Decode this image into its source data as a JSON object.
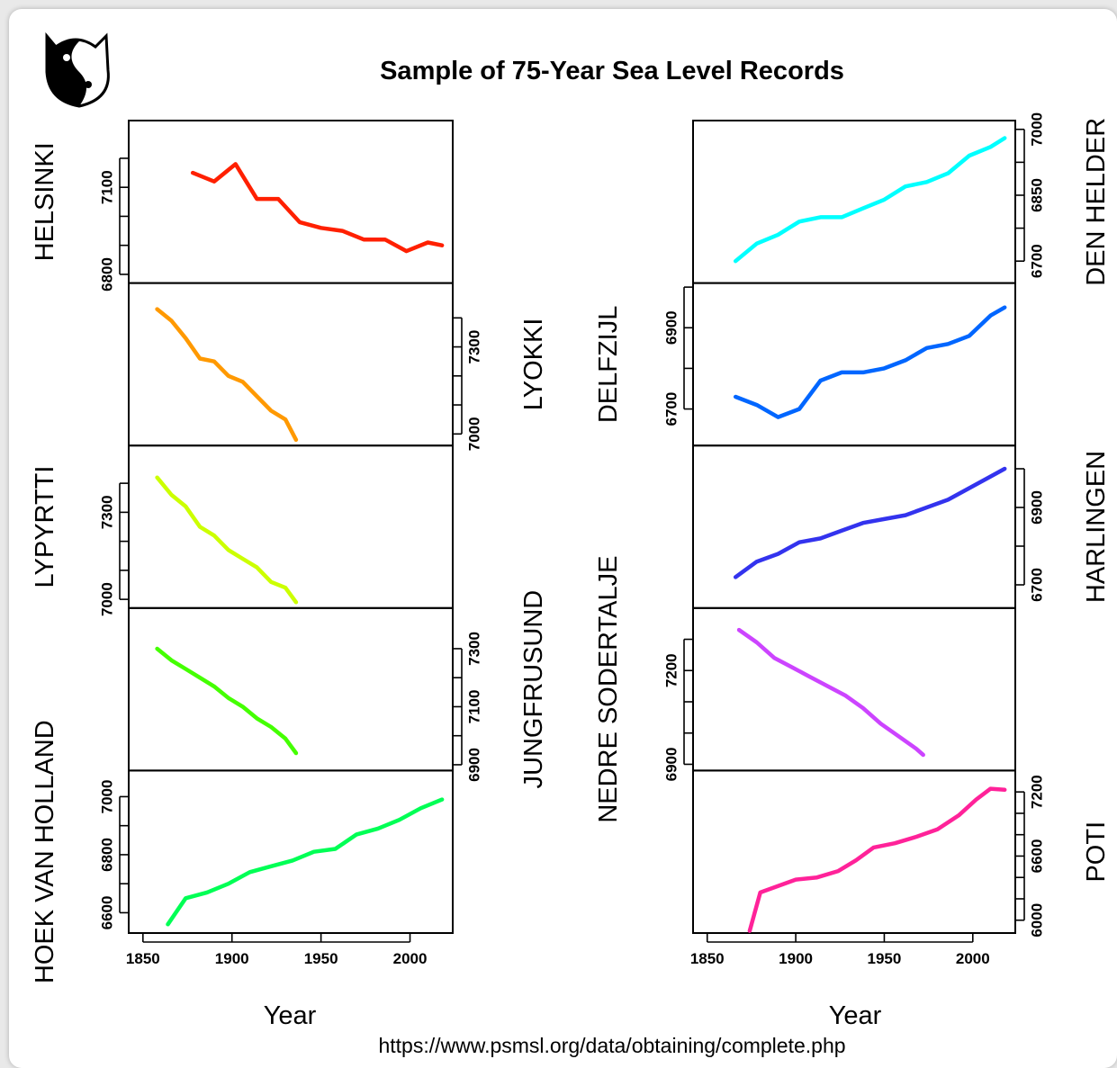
{
  "title": "Sample of 75-Year Sea Level Records",
  "source": "https://www.psmsl.org/data/obtaining/complete.php",
  "logo": {
    "icon": "yin-yang-cat-icon"
  },
  "chart_data": {
    "type": "line",
    "title": "Sample of 75-Year Sea Level Records",
    "xlabel": "Year",
    "xlim": [
      1842,
      2024
    ],
    "x_ticks": [
      1850,
      1900,
      1950,
      2000
    ],
    "x_tick_labels": [
      "1850",
      "1900",
      "1950",
      "2000"
    ],
    "panels_left": [
      {
        "name": "HELSINKI",
        "color": "#ff2000",
        "axis_side": "left",
        "ylim": [
          6770,
          7330
        ],
        "ticks": [
          6800,
          7100
        ],
        "tick_labels": [
          "6800",
          "7100"
        ],
        "minor_ticks": [
          6800,
          6900,
          7000,
          7100,
          7200
        ],
        "x": [
          1878,
          1890,
          1902,
          1914,
          1926,
          1938,
          1950,
          1962,
          1974,
          1986,
          1998,
          2010,
          2018
        ],
        "values": [
          7150,
          7120,
          7180,
          7060,
          7060,
          6980,
          6960,
          6950,
          6920,
          6920,
          6880,
          6910,
          6900
        ]
      },
      {
        "name": "LYOKKI",
        "color": "#ff9900",
        "axis_side": "right",
        "ylim": [
          6960,
          7520
        ],
        "ticks": [
          7000,
          7300
        ],
        "tick_labels": [
          "7000",
          "7300"
        ],
        "minor_ticks": [
          7000,
          7100,
          7200,
          7300,
          7400
        ],
        "x": [
          1858,
          1866,
          1874,
          1882,
          1890,
          1898,
          1906,
          1914,
          1922,
          1930,
          1936
        ],
        "values": [
          7430,
          7390,
          7330,
          7260,
          7250,
          7200,
          7180,
          7130,
          7080,
          7050,
          6980
        ]
      },
      {
        "name": "LYPYRTTI",
        "color": "#ccff00",
        "axis_side": "left",
        "ylim": [
          6970,
          7530
        ],
        "ticks": [
          7000,
          7300
        ],
        "tick_labels": [
          "7000",
          "7300"
        ],
        "minor_ticks": [
          7000,
          7100,
          7200,
          7300,
          7400
        ],
        "x": [
          1858,
          1866,
          1874,
          1882,
          1890,
          1898,
          1906,
          1914,
          1922,
          1930,
          1936
        ],
        "values": [
          7420,
          7360,
          7320,
          7250,
          7220,
          7170,
          7140,
          7110,
          7060,
          7040,
          6990
        ]
      },
      {
        "name": "JUNGFRUSUND",
        "color": "#44ff00",
        "axis_side": "right",
        "ylim": [
          6880,
          7440
        ],
        "ticks": [
          6900,
          7100,
          7300
        ],
        "tick_labels": [
          "6900",
          "7100",
          "7300"
        ],
        "minor_ticks": [
          6900,
          7000,
          7100,
          7200,
          7300
        ],
        "x": [
          1858,
          1866,
          1874,
          1882,
          1890,
          1898,
          1906,
          1914,
          1922,
          1930,
          1936
        ],
        "values": [
          7300,
          7260,
          7230,
          7200,
          7170,
          7130,
          7100,
          7060,
          7030,
          6990,
          6940
        ]
      },
      {
        "name": "HOEK VAN HOLLAND",
        "color": "#00ff55",
        "axis_side": "left",
        "ylim": [
          6530,
          7090
        ],
        "ticks": [
          6600,
          6800,
          7000
        ],
        "tick_labels": [
          "6600",
          "6800",
          "7000"
        ],
        "minor_ticks": [
          6600,
          6700,
          6800,
          6900,
          7000
        ],
        "x": [
          1864,
          1874,
          1886,
          1898,
          1910,
          1922,
          1934,
          1946,
          1958,
          1970,
          1982,
          1994,
          2006,
          2018
        ],
        "values": [
          6560,
          6650,
          6670,
          6700,
          6740,
          6760,
          6780,
          6810,
          6820,
          6870,
          6890,
          6920,
          6960,
          6990
        ]
      }
    ],
    "panels_right": [
      {
        "name": "DEN HELDER",
        "color": "#00ffff",
        "axis_side": "right",
        "ylim": [
          6650,
          7020
        ],
        "ticks": [
          6700,
          6850,
          7000
        ],
        "tick_labels": [
          "6700",
          "6850",
          "7000"
        ],
        "minor_ticks": [
          6700,
          6775,
          6850,
          6925,
          7000
        ],
        "x": [
          1866,
          1878,
          1890,
          1902,
          1914,
          1926,
          1938,
          1950,
          1962,
          1974,
          1986,
          1998,
          2010,
          2018
        ],
        "values": [
          6700,
          6740,
          6760,
          6790,
          6800,
          6800,
          6820,
          6840,
          6870,
          6880,
          6900,
          6940,
          6960,
          6980
        ]
      },
      {
        "name": "DELFZIJL",
        "color": "#0066ff",
        "axis_side": "left",
        "ylim": [
          6610,
          7010
        ],
        "ticks": [
          6700,
          6900
        ],
        "tick_labels": [
          "6700",
          "6900"
        ],
        "minor_ticks": [
          6700,
          6800,
          6900,
          7000
        ],
        "x": [
          1866,
          1878,
          1890,
          1902,
          1914,
          1926,
          1938,
          1950,
          1962,
          1974,
          1986,
          1998,
          2010,
          2018
        ],
        "values": [
          6730,
          6710,
          6680,
          6700,
          6770,
          6790,
          6790,
          6800,
          6820,
          6850,
          6860,
          6880,
          6930,
          6950
        ]
      },
      {
        "name": "HARLINGEN",
        "color": "#3333ee",
        "axis_side": "right",
        "ylim": [
          6640,
          7060
        ],
        "ticks": [
          6700,
          6900
        ],
        "tick_labels": [
          "6700",
          "6900"
        ],
        "minor_ticks": [
          6700,
          6800,
          6900,
          7000
        ],
        "x": [
          1866,
          1878,
          1890,
          1902,
          1914,
          1926,
          1938,
          1950,
          1962,
          1974,
          1986,
          1998,
          2010,
          2018
        ],
        "values": [
          6720,
          6760,
          6780,
          6810,
          6820,
          6840,
          6860,
          6870,
          6880,
          6900,
          6920,
          6950,
          6980,
          7000
        ]
      },
      {
        "name": "NEDRE SODERTALJE",
        "color": "#cc44ff",
        "axis_side": "left",
        "ylim": [
          6880,
          7400
        ],
        "ticks": [
          6900,
          7200
        ],
        "tick_labels": [
          "6900",
          "7200"
        ],
        "minor_ticks": [
          6900,
          7000,
          7100,
          7200,
          7300
        ],
        "x": [
          1868,
          1878,
          1888,
          1898,
          1908,
          1918,
          1928,
          1938,
          1948,
          1958,
          1968,
          1972
        ],
        "values": [
          7330,
          7290,
          7240,
          7210,
          7180,
          7150,
          7120,
          7080,
          7030,
          6990,
          6950,
          6930
        ]
      },
      {
        "name": "POTI",
        "color": "#ff2299",
        "axis_side": "right",
        "ylim": [
          5880,
          7400
        ],
        "ticks": [
          6000,
          6600,
          7200
        ],
        "tick_labels": [
          "6000",
          "6600",
          "7200"
        ],
        "minor_ticks": [
          6000,
          6200,
          6400,
          6600,
          6800,
          7000,
          7200
        ],
        "x": [
          1874,
          1880,
          1890,
          1900,
          1912,
          1924,
          1934,
          1944,
          1956,
          1968,
          1980,
          1992,
          2002,
          2010,
          2018
        ],
        "values": [
          5900,
          6260,
          6320,
          6380,
          6400,
          6460,
          6560,
          6680,
          6720,
          6780,
          6850,
          6980,
          7130,
          7230,
          7220
        ]
      }
    ]
  }
}
